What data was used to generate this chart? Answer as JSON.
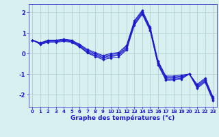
{
  "title": "Graphe des températures (°c)",
  "background_color": "#d8f0f0",
  "grid_color": "#b0d0d0",
  "line_color": "#1a1acc",
  "xlim": [
    -0.5,
    23.5
  ],
  "ylim": [
    -2.6,
    2.4
  ],
  "yticks": [
    -2,
    -1,
    0,
    1,
    2
  ],
  "xticks": [
    0,
    1,
    2,
    3,
    4,
    5,
    6,
    7,
    8,
    9,
    10,
    11,
    12,
    13,
    14,
    15,
    16,
    17,
    18,
    19,
    20,
    21,
    22,
    23
  ],
  "series": [
    [
      0.65,
      0.52,
      0.65,
      0.65,
      0.7,
      0.65,
      0.45,
      0.2,
      0.05,
      -0.1,
      0.0,
      0.05,
      0.4,
      1.6,
      2.1,
      1.3,
      -0.35,
      -1.1,
      -1.1,
      -1.05,
      -1.0,
      -1.5,
      -1.2,
      -2.1
    ],
    [
      0.65,
      0.5,
      0.62,
      0.62,
      0.67,
      0.62,
      0.42,
      0.15,
      0.0,
      -0.15,
      -0.05,
      0.0,
      0.35,
      1.55,
      2.05,
      1.25,
      -0.4,
      -1.15,
      -1.15,
      -1.1,
      -1.0,
      -1.55,
      -1.25,
      -2.15
    ],
    [
      0.65,
      0.48,
      0.6,
      0.6,
      0.65,
      0.6,
      0.38,
      0.1,
      -0.05,
      -0.2,
      -0.1,
      -0.05,
      0.28,
      1.48,
      2.0,
      1.2,
      -0.45,
      -1.2,
      -1.2,
      -1.15,
      -1.0,
      -1.6,
      -1.3,
      -2.2
    ],
    [
      0.65,
      0.46,
      0.57,
      0.57,
      0.62,
      0.57,
      0.35,
      0.05,
      -0.1,
      -0.25,
      -0.15,
      -0.1,
      0.22,
      1.42,
      1.95,
      1.15,
      -0.5,
      -1.25,
      -1.25,
      -1.2,
      -1.0,
      -1.65,
      -1.35,
      -2.25
    ],
    [
      0.65,
      0.44,
      0.54,
      0.54,
      0.59,
      0.54,
      0.32,
      0.02,
      -0.15,
      -0.3,
      -0.22,
      -0.17,
      0.17,
      1.37,
      1.9,
      1.1,
      -0.56,
      -1.3,
      -1.3,
      -1.25,
      -1.0,
      -1.7,
      -1.4,
      -2.3
    ]
  ]
}
